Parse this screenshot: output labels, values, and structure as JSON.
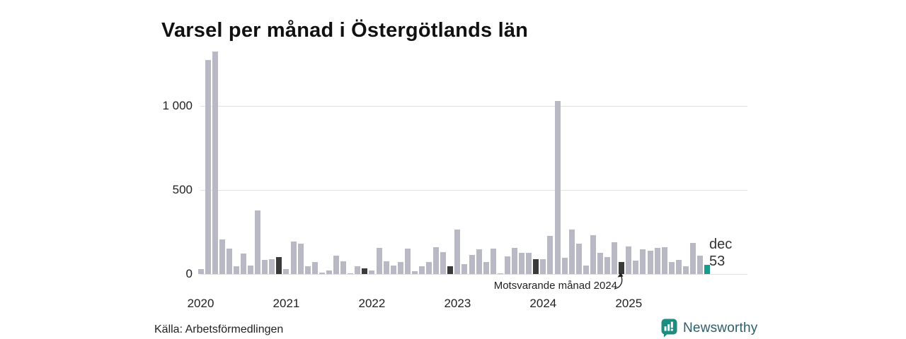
{
  "title": "Varsel per månad i Östergötlands län",
  "source": "Källa: Arbetsförmedlingen",
  "annotation": {
    "text": "Motsvarande månad 2024"
  },
  "last_point_label": {
    "month": "dec",
    "value": "53"
  },
  "logo": {
    "text": "Newsworthy"
  },
  "colors": {
    "bar_default": "#b9b9c6",
    "bar_dark_december": "#3a3a3a",
    "bar_accent_latest": "#169b8c",
    "gridline": "#e0e0e0",
    "axis_text": "#222222",
    "title_text": "#111111",
    "logo_teal": "#1f8c82",
    "logo_text": "#2e5e69"
  },
  "chart_data": {
    "type": "bar",
    "title": "Varsel per månad i Östergötlands län",
    "xlabel": "",
    "ylabel": "",
    "unit": "varsel per månad (antal personer)",
    "grid": "horizontal",
    "legend": "none",
    "ylim": [
      0,
      1360
    ],
    "y_ticks": [
      {
        "value": 0,
        "label": "0"
      },
      {
        "value": 500,
        "label": "500"
      },
      {
        "value": 1000,
        "label": "1 000"
      }
    ],
    "x_tick_labels": [
      "2020",
      "2021",
      "2022",
      "2023",
      "2024",
      "2025"
    ],
    "values_by_year": [
      {
        "year": "2020",
        "values": [
          30,
          1275,
          1325,
          205,
          150,
          45,
          120,
          50,
          380,
          85,
          90,
          100
        ]
      },
      {
        "year": "2021",
        "values": [
          30,
          195,
          180,
          45,
          70,
          10,
          20,
          110,
          75,
          5,
          45,
          35
        ]
      },
      {
        "year": "2022",
        "values": [
          20,
          155,
          75,
          50,
          70,
          150,
          15,
          45,
          70,
          160,
          130,
          45
        ]
      },
      {
        "year": "2023",
        "values": [
          265,
          60,
          115,
          145,
          70,
          150,
          5,
          105,
          155,
          125,
          125,
          90
        ]
      },
      {
        "year": "2024",
        "values": [
          90,
          225,
          1030,
          95,
          265,
          180,
          50,
          230,
          125,
          100,
          190,
          72
        ]
      },
      {
        "year": "2025",
        "values": [
          165,
          80,
          145,
          140,
          155,
          160,
          70,
          85,
          45,
          185,
          110,
          53
        ]
      }
    ],
    "highlights": {
      "dark_bars": "december varje år 2020–2024",
      "dark_bar_indices": [
        11,
        23,
        35,
        47,
        59
      ],
      "accent_bar": "dec 2025",
      "accent_bar_index": 71,
      "accent_value": 53,
      "annotation_target": "dec 2024"
    }
  }
}
